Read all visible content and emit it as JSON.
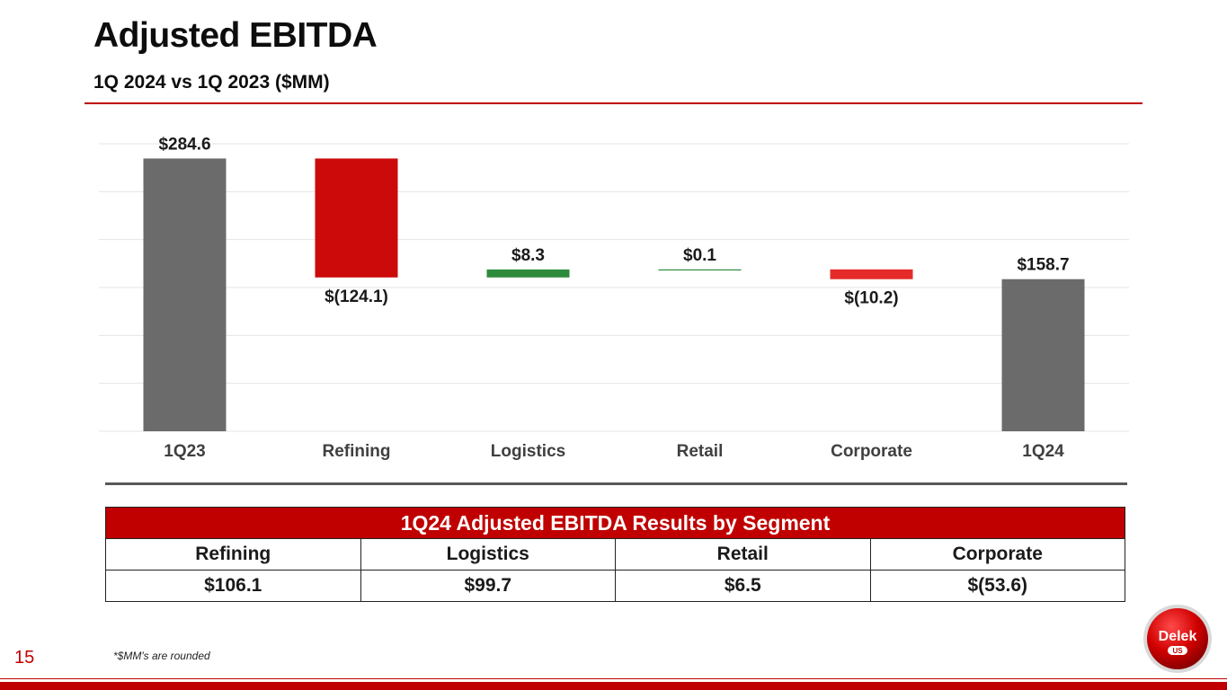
{
  "header": {
    "title": "Adjusted EBITDA",
    "subtitle": "1Q 2024 vs 1Q 2023 ($MM)"
  },
  "colors": {
    "accent_red": "#c00000",
    "bar_gray": "#6b6b6b",
    "decrease_red": "#cc0a0a",
    "decrease_light_red": "#e52a2a",
    "increase_green": "#2e8b3c"
  },
  "chart_data": {
    "type": "bar",
    "subtype": "waterfall",
    "categories": [
      "1Q23",
      "Refining",
      "Logistics",
      "Retail",
      "Corporate",
      "1Q24"
    ],
    "values": [
      284.6,
      -124.1,
      8.3,
      0.1,
      -10.2,
      158.7
    ],
    "kinds": [
      "total",
      "delta",
      "delta",
      "delta",
      "delta",
      "total"
    ],
    "data_labels": [
      "$284.6",
      "$(124.1)",
      "$8.3",
      "$0.1",
      "$(10.2)",
      "$158.7"
    ],
    "ylim": [
      0,
      300
    ],
    "grid": true,
    "legend": "none",
    "title": "",
    "xlabel": "",
    "ylabel": ""
  },
  "segment_table": {
    "title": "1Q24 Adjusted EBITDA Results by Segment",
    "headers": [
      "Refining",
      "Logistics",
      "Retail",
      "Corporate"
    ],
    "values": [
      "$106.1",
      "$99.7",
      "$6.5",
      "$(53.6)"
    ]
  },
  "footer": {
    "page_number": "15",
    "footnote": "*$MM's are rounded",
    "logo_text": "Delek",
    "logo_subtext": "US"
  }
}
